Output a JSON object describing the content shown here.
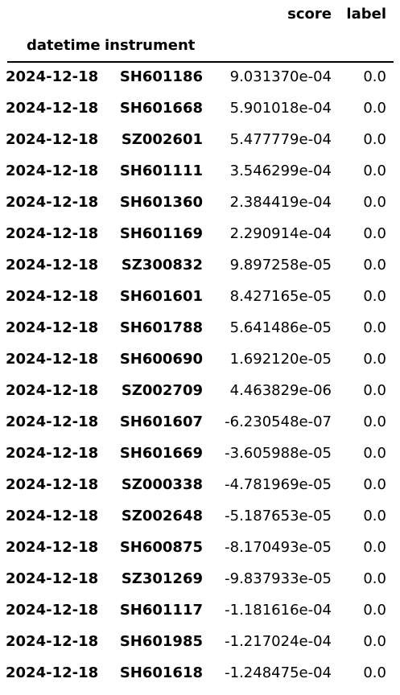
{
  "table": {
    "header": {
      "score": "score",
      "label": "label",
      "datetime": "datetime",
      "instrument": "instrument"
    },
    "rows": [
      {
        "datetime": "2024-12-18",
        "instrument": "SH601186",
        "score": "9.031370e-04",
        "label": "0.0"
      },
      {
        "datetime": "2024-12-18",
        "instrument": "SH601668",
        "score": "5.901018e-04",
        "label": "0.0"
      },
      {
        "datetime": "2024-12-18",
        "instrument": "SZ002601",
        "score": "5.477779e-04",
        "label": "0.0"
      },
      {
        "datetime": "2024-12-18",
        "instrument": "SH601111",
        "score": "3.546299e-04",
        "label": "0.0"
      },
      {
        "datetime": "2024-12-18",
        "instrument": "SH601360",
        "score": "2.384419e-04",
        "label": "0.0"
      },
      {
        "datetime": "2024-12-18",
        "instrument": "SH601169",
        "score": "2.290914e-04",
        "label": "0.0"
      },
      {
        "datetime": "2024-12-18",
        "instrument": "SZ300832",
        "score": "9.897258e-05",
        "label": "0.0"
      },
      {
        "datetime": "2024-12-18",
        "instrument": "SH601601",
        "score": "8.427165e-05",
        "label": "0.0"
      },
      {
        "datetime": "2024-12-18",
        "instrument": "SH601788",
        "score": "5.641486e-05",
        "label": "0.0"
      },
      {
        "datetime": "2024-12-18",
        "instrument": "SH600690",
        "score": "1.692120e-05",
        "label": "0.0"
      },
      {
        "datetime": "2024-12-18",
        "instrument": "SZ002709",
        "score": "4.463829e-06",
        "label": "0.0"
      },
      {
        "datetime": "2024-12-18",
        "instrument": "SH601607",
        "score": "-6.230548e-07",
        "label": "0.0"
      },
      {
        "datetime": "2024-12-18",
        "instrument": "SH601669",
        "score": "-3.605988e-05",
        "label": "0.0"
      },
      {
        "datetime": "2024-12-18",
        "instrument": "SZ000338",
        "score": "-4.781969e-05",
        "label": "0.0"
      },
      {
        "datetime": "2024-12-18",
        "instrument": "SZ002648",
        "score": "-5.187653e-05",
        "label": "0.0"
      },
      {
        "datetime": "2024-12-18",
        "instrument": "SH600875",
        "score": "-8.170493e-05",
        "label": "0.0"
      },
      {
        "datetime": "2024-12-18",
        "instrument": "SZ301269",
        "score": "-9.837933e-05",
        "label": "0.0"
      },
      {
        "datetime": "2024-12-18",
        "instrument": "SH601117",
        "score": "-1.181616e-04",
        "label": "0.0"
      },
      {
        "datetime": "2024-12-18",
        "instrument": "SH601985",
        "score": "-1.217024e-04",
        "label": "0.0"
      },
      {
        "datetime": "2024-12-18",
        "instrument": "SH601618",
        "score": "-1.248475e-04",
        "label": "0.0"
      }
    ]
  }
}
